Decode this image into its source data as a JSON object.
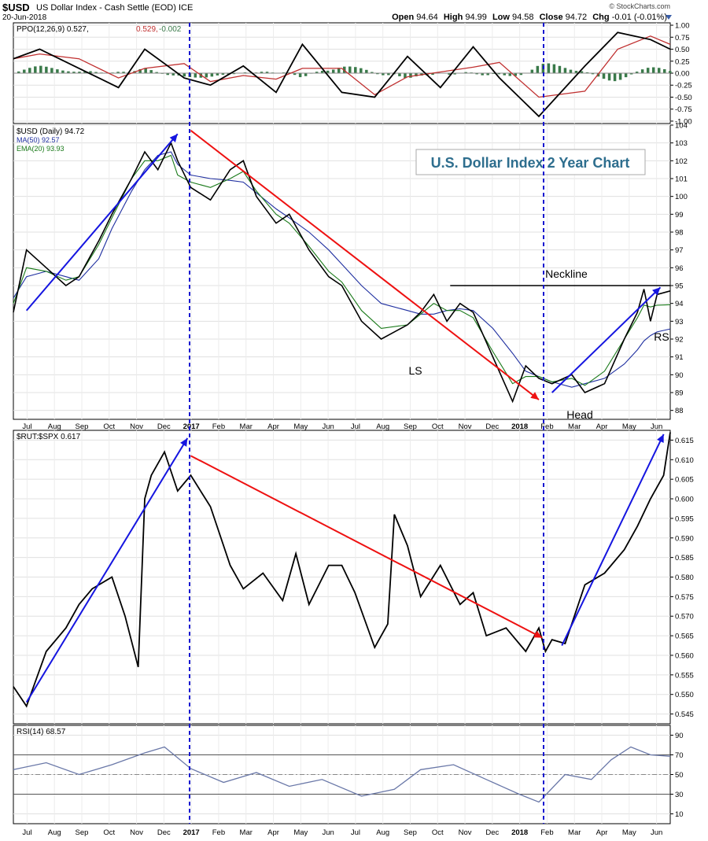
{
  "header": {
    "symbol": "$USD",
    "description": "US Dollar Index - Cash Settle (EOD)",
    "exchange": "ICE",
    "date": "20-Jun-2018",
    "brand": "© StockCharts.com",
    "open_label": "Open",
    "open": "94.64",
    "high_label": "High",
    "high": "94.99",
    "low_label": "Low",
    "low": "94.58",
    "close_label": "Close",
    "close": "94.72",
    "chg_label": "Chg",
    "chg": "-0.01 (-0.01%)"
  },
  "colors": {
    "price": "#000000",
    "ma50": "#1f2fa0",
    "ema20": "#1a7a1a",
    "trend_up": "#1515e0",
    "trend_down": "#ee1111",
    "ppo_signal": "#c03030",
    "histogram": "#3a7a4a",
    "rsi": "#6a78a8",
    "title_box_text": "#2e6e8e"
  },
  "chart_data": [
    {
      "type": "line",
      "title": "PPO(12,26,9)",
      "legend": [
        {
          "name": "PPO(12,26,9)",
          "value": "0.527",
          "color": "#000000"
        },
        {
          "name": "signal",
          "value": "0.529",
          "color": "#c03030"
        },
        {
          "name": "histogram",
          "value": "-0.002",
          "color": "#3a7a4a"
        }
      ],
      "ylim": [
        -1.05,
        1.05
      ],
      "yticks": [
        "-1.00",
        "-0.75",
        "-0.50",
        "-0.25",
        "0.00",
        "0.25",
        "0.50",
        "0.75",
        "1.00"
      ],
      "x": [
        0,
        0.04,
        0.1,
        0.16,
        0.2,
        0.26,
        0.3,
        0.35,
        0.4,
        0.44,
        0.5,
        0.55,
        0.6,
        0.65,
        0.7,
        0.74,
        0.8,
        0.87,
        0.92,
        0.97,
        1
      ],
      "series": [
        {
          "name": "PPO",
          "values": [
            0.3,
            0.5,
            0.1,
            -0.3,
            0.5,
            -0.1,
            -0.25,
            0.15,
            -0.4,
            0.6,
            -0.4,
            -0.5,
            0.35,
            -0.3,
            0.55,
            -0.1,
            -0.9,
            0.15,
            0.85,
            0.7,
            0.5
          ]
        }
      ]
    },
    {
      "type": "line",
      "title": "$USD (Daily) 94.72",
      "legend": [
        {
          "name": "$USD (Daily)",
          "value": "94.72"
        },
        {
          "name": "MA(50)",
          "value": "92.57"
        },
        {
          "name": "EMA(20)",
          "value": "93.93"
        }
      ],
      "ylim": [
        87.5,
        104
      ],
      "yticks": [
        "88",
        "89",
        "90",
        "91",
        "92",
        "93",
        "94",
        "95",
        "96",
        "97",
        "98",
        "99",
        "100",
        "101",
        "102",
        "103",
        "104"
      ],
      "xticks": [
        "Jul",
        "Aug",
        "Sep",
        "Oct",
        "Nov",
        "Dec",
        "2017",
        "Feb",
        "Mar",
        "Apr",
        "May",
        "Jun",
        "Jul",
        "Aug",
        "Sep",
        "Oct",
        "Nov",
        "Dec",
        "2018",
        "Feb",
        "Mar",
        "Apr",
        "May",
        "Jun"
      ],
      "annotations": [
        "U.S. Dollar Index 2 Year Chart",
        "Neckline",
        "LS",
        "Head",
        "RS"
      ],
      "neckline": 95,
      "x": [
        0,
        0.02,
        0.05,
        0.08,
        0.1,
        0.13,
        0.15,
        0.18,
        0.2,
        0.22,
        0.24,
        0.25,
        0.27,
        0.3,
        0.33,
        0.35,
        0.37,
        0.4,
        0.42,
        0.45,
        0.48,
        0.5,
        0.53,
        0.56,
        0.6,
        0.62,
        0.64,
        0.66,
        0.68,
        0.7,
        0.73,
        0.76,
        0.78,
        0.8,
        0.82,
        0.85,
        0.87,
        0.9,
        0.93,
        0.95,
        0.96,
        0.97,
        0.98,
        1
      ],
      "series": [
        {
          "name": "$USD (Daily)",
          "values": [
            93.5,
            97,
            96,
            95,
            95.5,
            97.5,
            99,
            101,
            102.5,
            101.5,
            103,
            102,
            100.5,
            99.8,
            101.5,
            102,
            100,
            98.5,
            99,
            97,
            95.5,
            95,
            93,
            92,
            92.8,
            93.5,
            94.5,
            93,
            94,
            93.5,
            91,
            88.5,
            90.5,
            89.8,
            89.5,
            90,
            89,
            89.5,
            92,
            93.5,
            94.8,
            93,
            94.5,
            94.7
          ]
        },
        {
          "name": "MA(50)",
          "values": [
            94.3,
            95.5,
            95.8,
            95.5,
            95.3,
            96.5,
            98.2,
            100.3,
            101.5,
            102.3,
            102.5,
            101.8,
            101.2,
            101,
            100.9,
            100.8,
            100.2,
            99.3,
            98.8,
            98,
            97,
            96.2,
            95,
            94,
            93.6,
            93.4,
            93.4,
            93.6,
            93.7,
            93.6,
            92.6,
            91.2,
            90.2,
            89.9,
            89.6,
            89.3,
            89.5,
            89.8,
            90.6,
            91.4,
            91.9,
            92.2,
            92.4,
            92.57
          ]
        },
        {
          "name": "EMA(20)",
          "values": [
            94,
            96,
            95.8,
            95.3,
            95.5,
            97.3,
            98.8,
            101,
            102,
            102,
            102.3,
            101.2,
            100.8,
            100.5,
            101,
            101.4,
            100.3,
            99,
            98.5,
            97.2,
            95.8,
            95.2,
            93.6,
            92.6,
            92.8,
            93.4,
            94,
            93.6,
            93.6,
            93.2,
            91.3,
            89.5,
            89.9,
            89.9,
            89.6,
            89.8,
            89.4,
            90.2,
            92,
            93.2,
            93.9,
            93.8,
            93.9,
            93.93
          ]
        }
      ],
      "trendlines": [
        {
          "color": "up",
          "from": [
            0.02,
            93.6
          ],
          "to": [
            0.25,
            103.5
          ]
        },
        {
          "color": "down",
          "from": [
            0.27,
            103.7
          ],
          "to": [
            0.8,
            88.6
          ]
        },
        {
          "color": "up",
          "from": [
            0.82,
            89
          ],
          "to": [
            0.985,
            94.9
          ]
        }
      ]
    },
    {
      "type": "line",
      "title": "$RUT:$SPX 0.617",
      "legend": [
        {
          "name": "$RUT:$SPX",
          "value": "0.617"
        }
      ],
      "ylim": [
        0.5425,
        0.6175
      ],
      "yticks": [
        "0.545",
        "0.550",
        "0.555",
        "0.560",
        "0.565",
        "0.570",
        "0.575",
        "0.580",
        "0.585",
        "0.590",
        "0.595",
        "0.600",
        "0.605",
        "0.610",
        "0.615"
      ],
      "x": [
        0,
        0.02,
        0.05,
        0.08,
        0.1,
        0.12,
        0.15,
        0.17,
        0.19,
        0.2,
        0.21,
        0.23,
        0.25,
        0.27,
        0.3,
        0.33,
        0.35,
        0.38,
        0.41,
        0.43,
        0.45,
        0.48,
        0.5,
        0.52,
        0.55,
        0.57,
        0.58,
        0.6,
        0.62,
        0.65,
        0.68,
        0.7,
        0.72,
        0.75,
        0.78,
        0.8,
        0.81,
        0.82,
        0.84,
        0.87,
        0.9,
        0.93,
        0.95,
        0.97,
        0.99,
        1
      ],
      "series": [
        {
          "name": "$RUT:$SPX",
          "values": [
            0.552,
            0.547,
            0.561,
            0.567,
            0.573,
            0.577,
            0.58,
            0.57,
            0.557,
            0.6,
            0.606,
            0.612,
            0.602,
            0.606,
            0.598,
            0.583,
            0.577,
            0.581,
            0.574,
            0.586,
            0.573,
            0.583,
            0.583,
            0.576,
            0.562,
            0.568,
            0.596,
            0.588,
            0.575,
            0.583,
            0.573,
            0.576,
            0.565,
            0.567,
            0.561,
            0.567,
            0.561,
            0.564,
            0.563,
            0.578,
            0.581,
            0.587,
            0.593,
            0.6,
            0.606,
            0.617
          ]
        }
      ],
      "trendlines": [
        {
          "color": "up",
          "from": [
            0.02,
            0.548
          ],
          "to": [
            0.265,
            0.6155
          ]
        },
        {
          "color": "down",
          "from": [
            0.27,
            0.611
          ],
          "to": [
            0.805,
            0.5645
          ]
        },
        {
          "color": "up",
          "from": [
            0.835,
            0.5625
          ],
          "to": [
            0.99,
            0.6165
          ]
        }
      ]
    },
    {
      "type": "line",
      "title": "RSI(14) 68.57",
      "legend": [
        {
          "name": "RSI(14)",
          "value": "68.57"
        }
      ],
      "ylim": [
        0,
        100
      ],
      "yticks": [
        "10",
        "30",
        "50",
        "70",
        "90"
      ],
      "xticks": [
        "Jul",
        "Aug",
        "Sep",
        "Oct",
        "Nov",
        "Dec",
        "2017",
        "Feb",
        "Mar",
        "Apr",
        "May",
        "Jun",
        "Jul",
        "Aug",
        "Sep",
        "Oct",
        "Nov",
        "Dec",
        "2018",
        "Feb",
        "Mar",
        "Apr",
        "May",
        "Jun"
      ],
      "x": [
        0,
        0.05,
        0.1,
        0.15,
        0.2,
        0.23,
        0.27,
        0.32,
        0.37,
        0.42,
        0.47,
        0.53,
        0.58,
        0.62,
        0.67,
        0.72,
        0.77,
        0.8,
        0.84,
        0.88,
        0.91,
        0.94,
        0.97,
        1
      ],
      "series": [
        {
          "name": "RSI(14)",
          "values": [
            55,
            62,
            50,
            60,
            72,
            78,
            56,
            42,
            52,
            38,
            45,
            28,
            35,
            55,
            60,
            45,
            30,
            22,
            50,
            45,
            65,
            78,
            70,
            68.57
          ]
        }
      ]
    }
  ]
}
